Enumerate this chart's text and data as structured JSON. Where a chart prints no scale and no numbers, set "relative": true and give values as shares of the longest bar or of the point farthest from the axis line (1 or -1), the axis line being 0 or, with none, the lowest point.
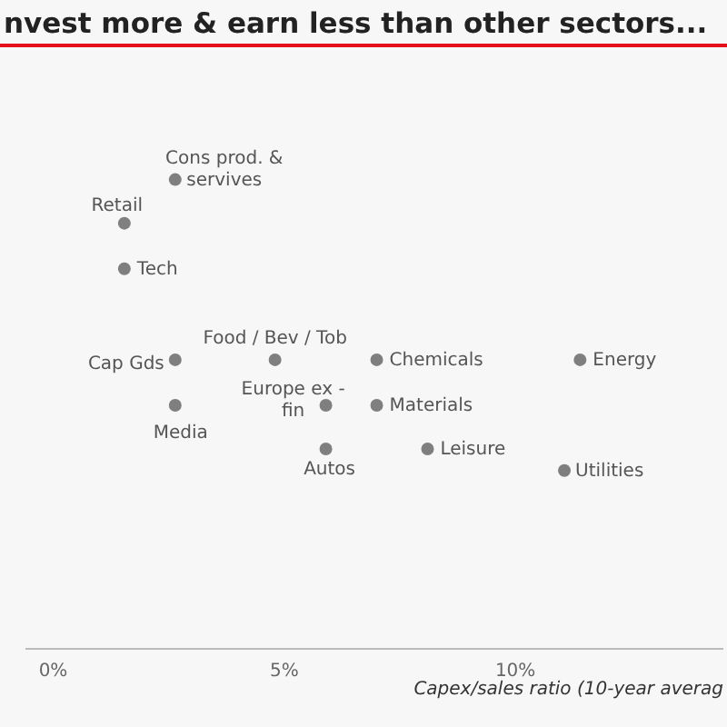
{
  "chart_data": {
    "type": "scatter",
    "title": "nvest more & earn less than other sectors...",
    "xlabel": "Capex/sales ratio (10-year averag",
    "relative": true,
    "color": "#7f7f7f",
    "marker": "circle",
    "x": [
      2.64,
      1.54,
      1.54,
      2.64,
      4.8,
      7.0,
      11.4,
      2.64,
      5.9,
      7.0,
      5.9,
      8.1,
      11.06
    ],
    "values": [
      1,
      0.907,
      0.81,
      0.616,
      0.616,
      0.616,
      0.616,
      0.519,
      0.519,
      0.519,
      0.426,
      0.426,
      0.38
    ],
    "xlim": [
      -0.6,
      14.5
    ],
    "xticks": [
      {
        "value": 0,
        "label": "0%"
      },
      {
        "value": 5,
        "label": "5%"
      },
      {
        "value": 10,
        "label": "10%"
      }
    ],
    "annotations": [
      {
        "text": "Cons prod. & servives",
        "x": 2.64,
        "y": 1
      },
      {
        "text": "Retail",
        "x": 1.54,
        "y": 0.907
      },
      {
        "text": "Tech",
        "x": 1.54,
        "y": 0.81
      },
      {
        "text": "Cap Gds",
        "x": 2.64,
        "y": 0.616
      },
      {
        "text": "Food / Bev / Tob",
        "x": 4.8,
        "y": 0.616
      },
      {
        "text": "Chemicals",
        "x": 7.0,
        "y": 0.616
      },
      {
        "text": "Energy",
        "x": 11.4,
        "y": 0.616
      },
      {
        "text": "Media",
        "x": 2.64,
        "y": 0.519
      },
      {
        "text": "Europe ex - fin",
        "x": 5.9,
        "y": 0.519
      },
      {
        "text": "Materials",
        "x": 7.0,
        "y": 0.519
      },
      {
        "text": "Autos",
        "x": 5.9,
        "y": 0.426
      },
      {
        "text": "Leisure",
        "x": 8.1,
        "y": 0.426
      },
      {
        "text": "Utilities",
        "x": 11.06,
        "y": 0.38
      }
    ]
  }
}
